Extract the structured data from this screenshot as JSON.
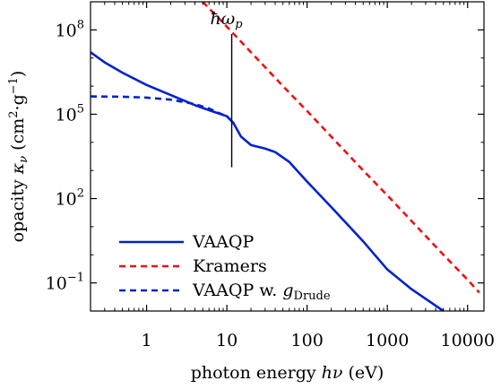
{
  "chart_data": {
    "type": "line",
    "title": "",
    "xlabel": {
      "text": "photon energy",
      "symbol": "hν",
      "unit": "(eV)"
    },
    "ylabel": {
      "text": "opacity",
      "symbol": "κ",
      "symbol_sub": "ν",
      "unit_open": "(cm",
      "unit_exp1": "2",
      "unit_mid": "·g",
      "unit_exp2": "−1",
      "unit_close": ")"
    },
    "x_scale": "log",
    "y_scale": "log",
    "xlim": [
      0.2,
      16000
    ],
    "ylim": [
      0.01,
      1000000000
    ],
    "grid": false,
    "legend_position": "bottom-left",
    "x_ticks": [
      {
        "value": 1,
        "label": "1"
      },
      {
        "value": 10,
        "label": "10"
      },
      {
        "value": 100,
        "label": "100"
      },
      {
        "value": 1000,
        "label": "1000"
      },
      {
        "value": 10000,
        "label": "10000"
      }
    ],
    "y_ticks": [
      {
        "value": 0.1,
        "base": "10",
        "exp": "−1"
      },
      {
        "value": 100,
        "base": "10",
        "exp": "2"
      },
      {
        "value": 100000,
        "base": "10",
        "exp": "5"
      },
      {
        "value": 100000000,
        "base": "10",
        "exp": "8"
      }
    ],
    "annotation": {
      "x": 11.5,
      "y_from": 1300,
      "y_to": 1000000000,
      "label_base": "ħω",
      "label_sub": "p"
    },
    "series": [
      {
        "name": "VAAQP",
        "color": "#0022cc",
        "dash": "solid",
        "points": [
          [
            0.2,
            16000000
          ],
          [
            0.3,
            7000000
          ],
          [
            0.5,
            3000000
          ],
          [
            1,
            1100000
          ],
          [
            2,
            480000
          ],
          [
            4,
            210000
          ],
          [
            7,
            120000
          ],
          [
            10,
            85000
          ],
          [
            12,
            50000
          ],
          [
            15,
            16000
          ],
          [
            20,
            8000
          ],
          [
            30,
            6000
          ],
          [
            40,
            4500
          ],
          [
            60,
            2000
          ],
          [
            100,
            400
          ],
          [
            200,
            50
          ],
          [
            500,
            3
          ],
          [
            1000,
            0.3
          ],
          [
            2000,
            0.06
          ],
          [
            5000,
            0.01
          ]
        ]
      },
      {
        "name": "Kramers",
        "color": "#ee1111",
        "dash": "dashed",
        "points": [
          [
            5,
            1000000000
          ],
          [
            10,
            130000000
          ],
          [
            20,
            16000000
          ],
          [
            50,
            1000000
          ],
          [
            100,
            130000
          ],
          [
            200,
            16000
          ],
          [
            500,
            1000
          ],
          [
            1000,
            130
          ],
          [
            2000,
            16
          ],
          [
            5000,
            1
          ],
          [
            10000,
            0.13
          ],
          [
            14000,
            0.045
          ]
        ]
      },
      {
        "name": "VAAQP w. g",
        "name_sub": "Drude",
        "color": "#0022cc",
        "dash": "dashed",
        "points": [
          [
            0.2,
            430000
          ],
          [
            0.5,
            420000
          ],
          [
            1,
            390000
          ],
          [
            2,
            330000
          ],
          [
            4,
            230000
          ],
          [
            6,
            160000
          ],
          [
            8,
            110000
          ],
          [
            10,
            85000
          ],
          [
            12,
            50000
          ]
        ]
      }
    ]
  }
}
